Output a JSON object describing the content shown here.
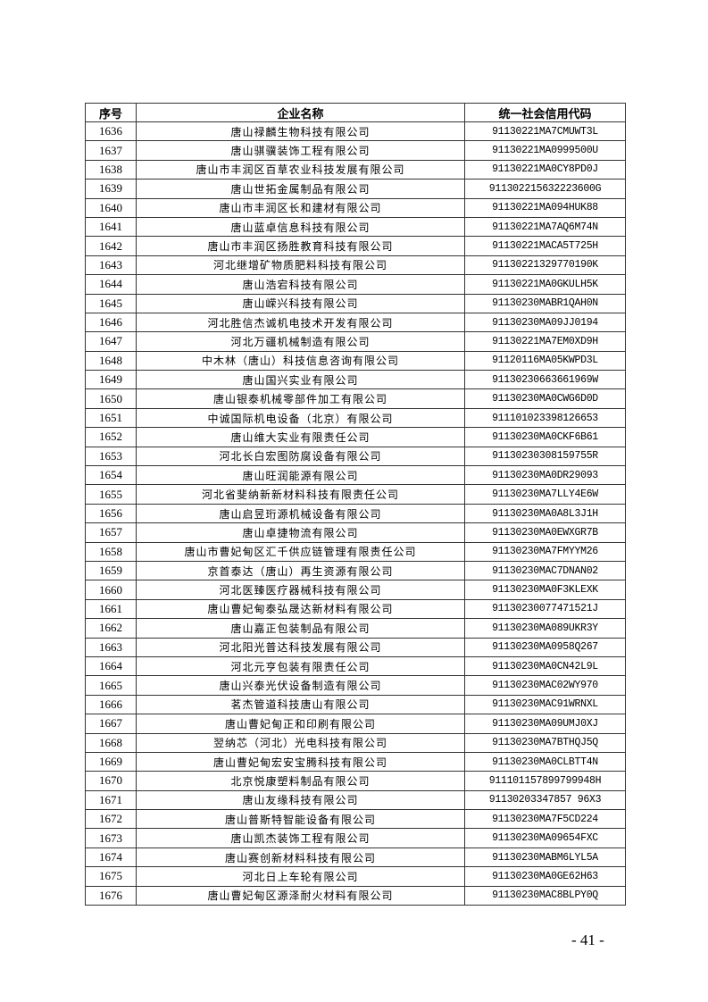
{
  "table": {
    "headers": [
      "序号",
      "企业名称",
      "统一社会信用代码"
    ],
    "rows": [
      [
        "1636",
        "唐山禄麟生物科技有限公司",
        "91130221MA7CMUWT3L"
      ],
      [
        "1637",
        "唐山骐骥装饰工程有限公司",
        "91130221MA0999500U"
      ],
      [
        "1638",
        "唐山市丰润区百草农业科技发展有限公司",
        "91130221MA0CY8PD0J"
      ],
      [
        "1639",
        "唐山世拓金属制品有限公司",
        "911302215632223600G"
      ],
      [
        "1640",
        "唐山市丰润区长和建材有限公司",
        "91130221MA094HUK88"
      ],
      [
        "1641",
        "唐山蓝卓信息科技有限公司",
        "91130221MA7AQ6M74N"
      ],
      [
        "1642",
        "唐山市丰润区扬胜教育科技有限公司",
        "91130221MACA5T725H"
      ],
      [
        "1643",
        "河北继增矿物质肥料科技有限公司",
        "91130221329770190K"
      ],
      [
        "1644",
        "唐山浩宕科技有限公司",
        "91130221MA0GKULH5K"
      ],
      [
        "1645",
        "唐山嵘兴科技有限公司",
        "91130230MABR1QAH0N"
      ],
      [
        "1646",
        "河北胜信杰诚机电技术开发有限公司",
        "91130230MA09JJ0194"
      ],
      [
        "1647",
        "河北万疆机械制造有限公司",
        "91130221MA7EM0XD9H"
      ],
      [
        "1648",
        "中木林（唐山）科技信息咨询有限公司",
        "91120116MA05KWPD3L"
      ],
      [
        "1649",
        "唐山国兴实业有限公司",
        "91130230663661969W"
      ],
      [
        "1650",
        "唐山银泰机械零部件加工有限公司",
        "91130230MA0CWG6D0D"
      ],
      [
        "1651",
        "中诚国际机电设备（北京）有限公司",
        "911101023398126653"
      ],
      [
        "1652",
        "唐山维大实业有限责任公司",
        "91130230MA0CKF6B61"
      ],
      [
        "1653",
        "河北长白宏图防腐设备有限公司",
        "91130230308159755R"
      ],
      [
        "1654",
        "唐山旺润能源有限公司",
        "91130230MA0DR29093"
      ],
      [
        "1655",
        "河北省斐纳新新材料科技有限责任公司",
        "91130230MA7LLY4E6W"
      ],
      [
        "1656",
        "唐山启昱珩源机械设备有限公司",
        "91130230MA0A8L3J1H"
      ],
      [
        "1657",
        "唐山卓捷物流有限公司",
        "91130230MA0EWXGR7B"
      ],
      [
        "1658",
        "唐山市曹妃甸区汇千供应链管理有限责任公司",
        "91130230MA7FMYYM26"
      ],
      [
        "1659",
        "京首泰达（唐山）再生资源有限公司",
        "91130230MAC7DNAN02"
      ],
      [
        "1660",
        "河北医臻医疗器械科技有限公司",
        "91130230MA0F3KLEXK"
      ],
      [
        "1661",
        "唐山曹妃甸泰弘晟达新材料有限公司",
        "91130230077471521J"
      ],
      [
        "1662",
        "唐山嘉正包装制品有限公司",
        "91130230MA089UKR3Y"
      ],
      [
        "1663",
        "河北阳光普达科技发展有限公司",
        "91130230MA0958Q267"
      ],
      [
        "1664",
        "河北元亨包装有限责任公司",
        "91130230MA0CN42L9L"
      ],
      [
        "1665",
        "唐山兴泰光伏设备制造有限公司",
        "91130230MAC02WY970"
      ],
      [
        "1666",
        "茗杰管道科技唐山有限公司",
        "91130230MAC91WRNXL"
      ],
      [
        "1667",
        "唐山曹妃甸正和印刷有限公司",
        "91130230MA09UMJ0XJ"
      ],
      [
        "1668",
        "翌纳芯（河北）光电科技有限公司",
        "91130230MA7BTHQJ5Q"
      ],
      [
        "1669",
        "唐山曹妃甸宏安宝腾科技有限公司",
        "91130230MA0CLBTT4N"
      ],
      [
        "1670",
        "北京悦康塑料制品有限公司",
        "911101157899799948H"
      ],
      [
        "1671",
        "唐山友缘科技有限公司",
        "91130203347857 96X3"
      ],
      [
        "1672",
        "唐山普斯特智能设备有限公司",
        "91130230MA7F5CD224"
      ],
      [
        "1673",
        "唐山凯杰装饰工程有限公司",
        "91130230MA09654FXC"
      ],
      [
        "1674",
        "唐山赛创新材料科技有限公司",
        "91130230MABM6LYL5A"
      ],
      [
        "1675",
        "河北日上车轮有限公司",
        "91130230MA0GE62H63"
      ],
      [
        "1676",
        "唐山曹妃甸区源泽耐火材料有限公司",
        "91130230MAC8BLPY0Q"
      ]
    ]
  },
  "footer": {
    "page_number": "- 41 -"
  }
}
